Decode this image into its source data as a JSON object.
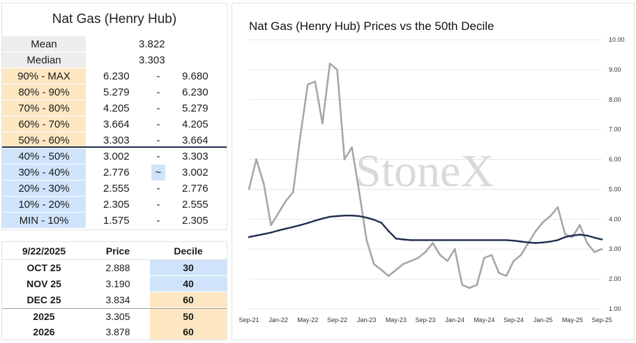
{
  "deciles": {
    "title": "Nat Gas (Henry Hub)",
    "mean": {
      "label": "Mean",
      "value": "3.822"
    },
    "median": {
      "label": "Median",
      "value": "3.303"
    },
    "rows": [
      {
        "label": "90% - MAX",
        "low": "6.230",
        "sep": "-",
        "high": "9.680",
        "color": "orange"
      },
      {
        "label": "80% - 90%",
        "low": "5.279",
        "sep": "-",
        "high": "6.230",
        "color": "orange"
      },
      {
        "label": "70% - 80%",
        "low": "4.205",
        "sep": "-",
        "high": "5.279",
        "color": "orange"
      },
      {
        "label": "60% - 70%",
        "low": "3.664",
        "sep": "-",
        "high": "4.205",
        "color": "orange"
      },
      {
        "label": "50% - 60%",
        "low": "3.303",
        "sep": "-",
        "high": "3.664",
        "color": "orange"
      },
      {
        "label": "40% - 50%",
        "low": "3.002",
        "sep": "-",
        "high": "3.303",
        "color": "blue"
      },
      {
        "label": "30% - 40%",
        "low": "2.776",
        "sep": "~",
        "high": "3.002",
        "color": "blue"
      },
      {
        "label": "20% - 30%",
        "low": "2.555",
        "sep": "-",
        "high": "2.776",
        "color": "blue"
      },
      {
        "label": "10% - 20%",
        "low": "2.305",
        "sep": "-",
        "high": "2.555",
        "color": "blue"
      },
      {
        "label": "MIN - 10%",
        "low": "1.575",
        "sep": "-",
        "high": "2.305",
        "color": "blue"
      }
    ]
  },
  "prices": {
    "headers": [
      "9/22/2025",
      "Price",
      "Decile"
    ],
    "rows": [
      {
        "contract": "OCT 25",
        "price": "2.888",
        "decile": "30",
        "color": "blue"
      },
      {
        "contract": "NOV 25",
        "price": "3.190",
        "decile": "40",
        "color": "blue"
      },
      {
        "contract": "DEC 25",
        "price": "3.834",
        "decile": "60",
        "color": "orange"
      },
      {
        "contract": "2025",
        "price": "3.305",
        "decile": "50",
        "color": "orange"
      },
      {
        "contract": "2026",
        "price": "3.878",
        "decile": "60",
        "color": "orange"
      }
    ]
  },
  "colors": {
    "orange": "#fde7c2",
    "blue": "#cfe4fb",
    "price_line": "#a6a6a6",
    "decile_line": "#1f2d4d",
    "watermark": "#d9d9d9"
  },
  "chart_data": {
    "type": "line",
    "title": "Nat Gas (Henry Hub) Prices vs the 50th Decile",
    "watermark": "StoneX",
    "xlabel": "",
    "ylabel": "",
    "ylim": [
      1.0,
      10.0
    ],
    "y_ticks": [
      "1.00",
      "2.00",
      "3.00",
      "4.00",
      "5.00",
      "6.00",
      "7.00",
      "8.00",
      "9.00",
      "10.00"
    ],
    "x_ticks": [
      "Sep-21",
      "Jan-22",
      "May-22",
      "Sep-22",
      "Jan-23",
      "May-23",
      "Sep-23",
      "Jan-24",
      "May-24",
      "Sep-24",
      "Jan-25",
      "May-25",
      "Sep-25"
    ],
    "grid": true,
    "legend": "none",
    "series": [
      {
        "color": "#a6a6a6",
        "x": [
          "Sep-21",
          "Oct-21",
          "Nov-21",
          "Dec-21",
          "Jan-22",
          "Feb-22",
          "Mar-22",
          "Apr-22",
          "May-22",
          "Jun-22",
          "Jul-22",
          "Aug-22",
          "Sep-22",
          "Oct-22",
          "Nov-22",
          "Dec-22",
          "Jan-23",
          "Feb-23",
          "Mar-23",
          "Apr-23",
          "May-23",
          "Jun-23",
          "Jul-23",
          "Aug-23",
          "Sep-23",
          "Oct-23",
          "Nov-23",
          "Dec-23",
          "Jan-24",
          "Feb-24",
          "Mar-24",
          "Apr-24",
          "May-24",
          "Jun-24",
          "Jul-24",
          "Aug-24",
          "Sep-24",
          "Oct-24",
          "Nov-24",
          "Dec-24",
          "Jan-25",
          "Feb-25",
          "Mar-25",
          "Apr-25",
          "May-25",
          "Jun-25",
          "Jul-25",
          "Aug-25",
          "Sep-25"
        ],
        "values": [
          5.0,
          6.0,
          5.2,
          3.8,
          4.2,
          4.6,
          4.9,
          6.8,
          8.5,
          8.6,
          7.2,
          9.2,
          9.0,
          6.0,
          6.4,
          4.9,
          3.3,
          2.5,
          2.3,
          2.1,
          2.3,
          2.5,
          2.6,
          2.7,
          2.9,
          3.2,
          2.8,
          2.6,
          3.0,
          1.8,
          1.7,
          1.8,
          2.7,
          2.8,
          2.2,
          2.1,
          2.6,
          2.8,
          3.2,
          3.6,
          3.9,
          4.1,
          4.4,
          3.5,
          3.4,
          3.8,
          3.2,
          2.9,
          3.0
        ]
      },
      {
        "color": "#1f2d4d",
        "x": [
          "Sep-21",
          "Oct-21",
          "Nov-21",
          "Dec-21",
          "Jan-22",
          "Feb-22",
          "Mar-22",
          "Apr-22",
          "May-22",
          "Jun-22",
          "Jul-22",
          "Aug-22",
          "Sep-22",
          "Oct-22",
          "Nov-22",
          "Dec-22",
          "Jan-23",
          "Feb-23",
          "Mar-23",
          "Apr-23",
          "May-23",
          "Jun-23",
          "Jul-23",
          "Aug-23",
          "Sep-23",
          "Oct-23",
          "Nov-23",
          "Dec-23",
          "Jan-24",
          "Feb-24",
          "Mar-24",
          "Apr-24",
          "May-24",
          "Jun-24",
          "Jul-24",
          "Aug-24",
          "Sep-24",
          "Oct-24",
          "Nov-24",
          "Dec-24",
          "Jan-25",
          "Feb-25",
          "Mar-25",
          "Apr-25",
          "May-25",
          "Jun-25",
          "Jul-25",
          "Aug-25",
          "Sep-25"
        ],
        "values": [
          3.4,
          3.45,
          3.5,
          3.55,
          3.62,
          3.68,
          3.74,
          3.8,
          3.87,
          3.95,
          4.02,
          4.08,
          4.1,
          4.12,
          4.12,
          4.1,
          4.05,
          3.98,
          3.88,
          3.6,
          3.35,
          3.32,
          3.3,
          3.3,
          3.3,
          3.3,
          3.3,
          3.3,
          3.3,
          3.3,
          3.3,
          3.3,
          3.3,
          3.3,
          3.3,
          3.3,
          3.28,
          3.25,
          3.22,
          3.2,
          3.22,
          3.25,
          3.3,
          3.4,
          3.45,
          3.48,
          3.45,
          3.38,
          3.32
        ]
      }
    ]
  }
}
